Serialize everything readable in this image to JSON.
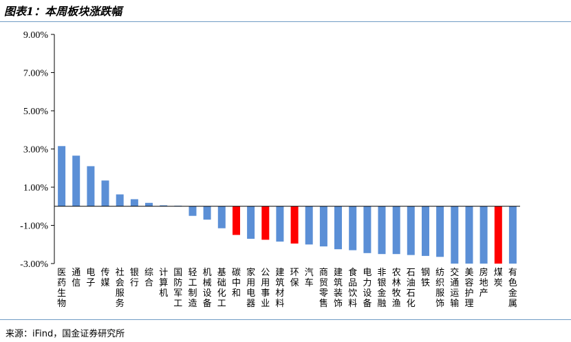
{
  "header": {
    "title": "图表1：本周板块涨跌幅"
  },
  "footer": {
    "source": "来源：iFind，国金证券研究所"
  },
  "colors": {
    "default_bar": "#5b8fd6",
    "highlight_bar": "#ff0000",
    "rule": "#6f9bc4"
  },
  "chart_data": {
    "type": "bar",
    "title": "",
    "xlabel": "",
    "ylabel": "",
    "ylim": [
      -3.0,
      9.0
    ],
    "yticks": [
      "9.00%",
      "7.00%",
      "5.00%",
      "3.00%",
      "1.00%",
      "-1.00%",
      "-3.00%"
    ],
    "ytick_values": [
      9,
      7,
      5,
      3,
      1,
      -1,
      -3
    ],
    "categories": [
      "医药生物",
      "通信",
      "电子",
      "传媒",
      "社会服务",
      "银行",
      "综合",
      "计算机",
      "国防军工",
      "轻工制造",
      "机械设备",
      "基础化工",
      "碳中和",
      "家用电器",
      "公用事业",
      "建筑材料",
      "环保",
      "汽车",
      "商贸零售",
      "建筑装饰",
      "食品饮料",
      "电力设备",
      "非银金融",
      "农林牧渔",
      "石油石化",
      "钢铁",
      "纺织服饰",
      "交通运输",
      "美容护理",
      "房地产",
      "煤炭",
      "有色金属"
    ],
    "values": [
      3.15,
      2.65,
      2.1,
      1.35,
      0.62,
      0.37,
      0.18,
      0.05,
      0.03,
      -0.5,
      -0.7,
      -1.15,
      -1.5,
      -1.7,
      -1.75,
      -1.85,
      -1.95,
      -2.0,
      -2.1,
      -2.25,
      -2.3,
      -2.45,
      -2.5,
      -2.5,
      -2.55,
      -2.6,
      -2.65,
      -3.0,
      -3.0,
      -3.0,
      -3.0,
      -3.0
    ],
    "highlight": [
      "碳中和",
      "公用事业",
      "环保",
      "煤炭"
    ],
    "grid": false,
    "legend": "none"
  }
}
